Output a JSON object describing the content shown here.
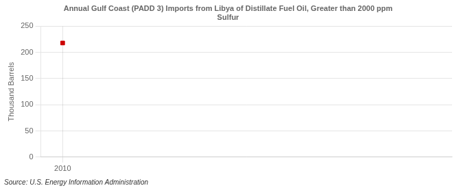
{
  "chart_data": {
    "type": "scatter",
    "title": "Annual Gulf Coast (PADD 3) Imports from Libya of Distillate Fuel Oil, Greater than 2000 ppm\nSulfur",
    "ylabel": "Thousand Barrels",
    "source": "Source: U.S. Energy Information Administration",
    "x": [
      2010
    ],
    "values": [
      218
    ],
    "color": "#CC0000",
    "marker": "square",
    "xlim": [
      2009.3,
      2022.5
    ],
    "xticks": [
      2010
    ],
    "ylim": [
      0,
      250
    ],
    "yticks": [
      0,
      50,
      100,
      150,
      200,
      250
    ],
    "grid": true
  }
}
